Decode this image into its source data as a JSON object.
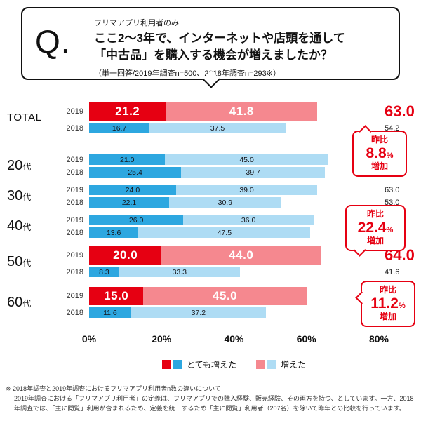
{
  "header": {
    "q_mark": "Q.",
    "eyebrow": "フリマアプリ利用者のみ",
    "title_line1": "ここ2〜3年で、インターネットや店頭を通して",
    "title_line2": "「中古品」を購入する機会が増えましたか？",
    "note": "（単一回答/2019年調査n=500、2018年調査n=293※）"
  },
  "chart_data": {
    "type": "bar",
    "orientation": "horizontal",
    "stacked": true,
    "x_max": 80,
    "x_ticks": [
      "0%",
      "20%",
      "40%",
      "60%",
      "80%"
    ],
    "palettes": {
      "red": [
        "#e60012",
        "#f5888f"
      ],
      "blue": [
        "#2da7e0",
        "#aedcf4"
      ]
    },
    "legend": [
      {
        "label": "とても増えた",
        "swatches": [
          "#e60012",
          "#2da7e0"
        ]
      },
      {
        "label": "増えた",
        "swatches": [
          "#f5888f",
          "#aedcf4"
        ]
      }
    ],
    "groups": [
      {
        "id": "total",
        "label": "TOTAL",
        "suffix": "",
        "rows": [
          {
            "year": "2019",
            "palette": "red",
            "big": true,
            "values": [
              21.2,
              41.8
            ],
            "total": 63.0
          },
          {
            "year": "2018",
            "palette": "blue",
            "big": false,
            "values": [
              16.7,
              37.5
            ],
            "total": 54.2
          }
        ]
      },
      {
        "id": "20s",
        "label": "20",
        "suffix": "代",
        "rows": [
          {
            "year": "2019",
            "palette": "blue",
            "big": false,
            "values": [
              21.0,
              45.0
            ],
            "total": 66.0
          },
          {
            "year": "2018",
            "palette": "blue",
            "big": false,
            "values": [
              25.4,
              39.7
            ],
            "total": 65.1
          }
        ]
      },
      {
        "id": "30s",
        "label": "30",
        "suffix": "代",
        "rows": [
          {
            "year": "2019",
            "palette": "blue",
            "big": false,
            "values": [
              24.0,
              39.0
            ],
            "total": 63.0
          },
          {
            "year": "2018",
            "palette": "blue",
            "big": false,
            "values": [
              22.1,
              30.9
            ],
            "total": 53.0
          }
        ]
      },
      {
        "id": "40s",
        "label": "40",
        "suffix": "代",
        "rows": [
          {
            "year": "2019",
            "palette": "blue",
            "big": false,
            "values": [
              26.0,
              36.0
            ],
            "total": 62.0
          },
          {
            "year": "2018",
            "palette": "blue",
            "big": false,
            "values": [
              13.6,
              47.5
            ],
            "total": 61.1
          }
        ]
      },
      {
        "id": "50s",
        "label": "50",
        "suffix": "代",
        "rows": [
          {
            "year": "2019",
            "palette": "red",
            "big": true,
            "values": [
              20.0,
              44.0
            ],
            "total": 64.0
          },
          {
            "year": "2018",
            "palette": "blue",
            "big": false,
            "values": [
              8.3,
              33.3
            ],
            "total": 41.6
          }
        ]
      },
      {
        "id": "60s",
        "label": "60",
        "suffix": "代",
        "rows": [
          {
            "year": "2019",
            "palette": "red",
            "big": true,
            "values": [
              15.0,
              45.0
            ],
            "total": 60.0
          },
          {
            "year": "2018",
            "palette": "blue",
            "big": false,
            "values": [
              11.6,
              37.2
            ],
            "total": 48.8
          }
        ]
      }
    ],
    "callouts": [
      {
        "label_top": "昨比",
        "value": "8.8",
        "unit": "%",
        "label_bottom": "増加"
      },
      {
        "label_top": "昨比",
        "value": "22.4",
        "unit": "%",
        "label_bottom": "増加"
      },
      {
        "label_top": "昨比",
        "value": "11.2",
        "unit": "%",
        "label_bottom": "増加"
      }
    ]
  },
  "footnote": {
    "title": "※ 2018年調査と2019年調査におけるフリマアプリ利用者n数の違いについて",
    "body": "2019年調査における「フリマアプリ利用者」の定義は、フリマアプリでの購入経験、販売経験、その両方を持つ、としています。一方、2018年調査では、「主に閲覧」利用が含まれるため、定義を統一するため「主に閲覧」利用者（207名）を除いて昨年との比較を行っています。"
  }
}
